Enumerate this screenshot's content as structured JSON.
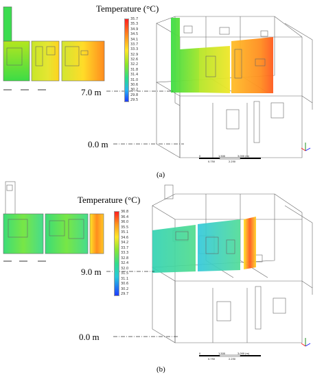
{
  "panel_a": {
    "legend_title": "Temperature (°C)",
    "ticks": [
      "35.7",
      "35.3",
      "34.9",
      "34.5",
      "34.1",
      "33.7",
      "33.3",
      "32.9",
      "32.6",
      "32.2",
      "31.8",
      "31.4",
      "31.0",
      "30.6",
      "30.2",
      "29.8",
      "29.5"
    ],
    "level_high": "7.0 m",
    "level_low": "0.0 m",
    "caption": "(a)",
    "scale_labels": [
      "0",
      "1.500",
      "3.000 (m)",
      "0.750",
      "2.250"
    ],
    "colors": {
      "hot": "#ff3a1a",
      "warm": "#ffcc00",
      "mid": "#c8e61e",
      "cool": "#3cdc3c",
      "low": "#1e64ff"
    }
  },
  "panel_b": {
    "legend_title": "Temperature (°C)",
    "ticks": [
      "36.8",
      "36.4",
      "36.0",
      "35.5",
      "35.1",
      "34.6",
      "34.2",
      "33.7",
      "33.3",
      "32.8",
      "32.4",
      "32.0",
      "31.5",
      "31.1",
      "30.6",
      "30.2",
      "29.7"
    ],
    "level_high": "9.0 m",
    "level_low": "0.0 m",
    "caption": "(b)",
    "scale_labels": [
      "0",
      "1.500",
      "3.000 (m)",
      "0.750",
      "2.250"
    ],
    "colors": {
      "hot": "#ff3a1a",
      "warm": "#ffcc00",
      "mid": "#64e664",
      "cool": "#32d2b4",
      "low": "#1e50ff"
    }
  }
}
